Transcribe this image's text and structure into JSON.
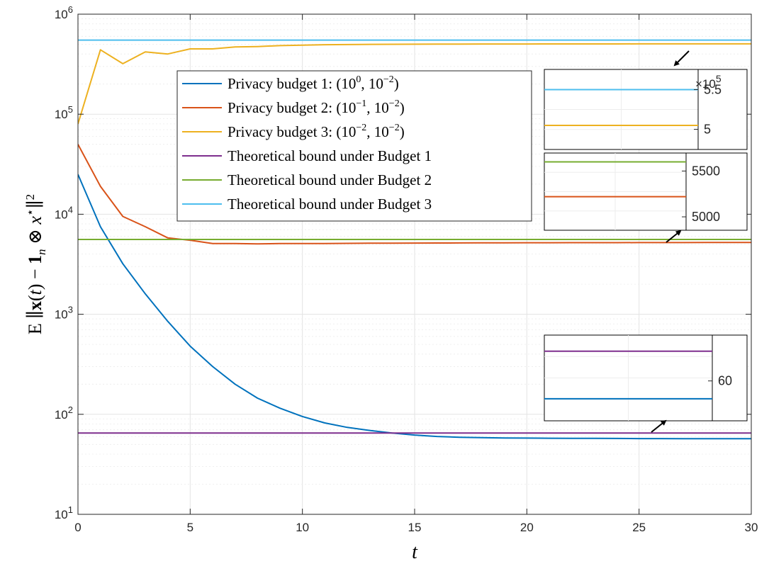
{
  "chart_data": {
    "type": "line",
    "xlabel": "t",
    "ylabel": "E ||x(t) − 1n ⊗ x*||²",
    "yscale": "log",
    "xlim": [
      0,
      30
    ],
    "ylim": [
      10,
      1000000
    ],
    "xticks": [
      0,
      5,
      10,
      15,
      20,
      25,
      30
    ],
    "x_tick_labels": [
      "0",
      "5",
      "10",
      "15",
      "20",
      "25",
      "30"
    ],
    "y_tick_labels": [
      {
        "base": "10",
        "exp": "1"
      },
      {
        "base": "10",
        "exp": "2"
      },
      {
        "base": "10",
        "exp": "3"
      },
      {
        "base": "10",
        "exp": "4"
      },
      {
        "base": "10",
        "exp": "5"
      },
      {
        "base": "10",
        "exp": "6"
      }
    ],
    "grid": true,
    "legend_position": "upper-left-center",
    "x": [
      0,
      1,
      2,
      3,
      4,
      5,
      6,
      7,
      8,
      9,
      10,
      11,
      12,
      13,
      14,
      15,
      16,
      17,
      18,
      19,
      20,
      21,
      22,
      23,
      24,
      25,
      26,
      27,
      28,
      29,
      30
    ],
    "series": [
      {
        "name": "Privacy budget 1",
        "label_prefix": "Privacy budget 1: ",
        "params": [
          {
            "base": "10",
            "exp": "0"
          },
          {
            "base": "10",
            "exp": "−2"
          }
        ],
        "color": "#0072BD",
        "values": [
          25000,
          7500,
          3200,
          1600,
          850,
          480,
          300,
          200,
          145,
          115,
          95,
          82,
          74,
          69,
          65,
          62,
          60,
          59,
          58.5,
          58,
          57.8,
          57.6,
          57.5,
          57.4,
          57.3,
          57.2,
          57.2,
          57.1,
          57.1,
          57,
          57
        ]
      },
      {
        "name": "Privacy budget 2",
        "label_prefix": "Privacy budget 2: ",
        "params": [
          {
            "base": "10",
            "exp": "−1"
          },
          {
            "base": "10",
            "exp": "−2"
          }
        ],
        "color": "#D95319",
        "values": [
          50000,
          19000,
          9500,
          7500,
          5800,
          5500,
          5100,
          5100,
          5050,
          5100,
          5100,
          5100,
          5120,
          5130,
          5140,
          5150,
          5160,
          5170,
          5180,
          5180,
          5190,
          5190,
          5200,
          5200,
          5200,
          5210,
          5210,
          5210,
          5220,
          5220,
          5220
        ]
      },
      {
        "name": "Privacy budget 3",
        "label_prefix": "Privacy budget 3: ",
        "params": [
          {
            "base": "10",
            "exp": "−2"
          },
          {
            "base": "10",
            "exp": "−2"
          }
        ],
        "color": "#EDB120",
        "values": [
          80000,
          440000,
          320000,
          420000,
          400000,
          450000,
          450000,
          470000,
          475000,
          485000,
          490000,
          495000,
          497000,
          499000,
          500000,
          501000,
          502000,
          502000,
          503000,
          503000,
          503000,
          504000,
          504000,
          504000,
          504000,
          505000,
          505000,
          505000,
          505000,
          505000,
          505000
        ]
      },
      {
        "name": "Theoretical bound under Budget 1",
        "label": "Theoretical bound under Budget 1",
        "color": "#7E2F8E",
        "constant": 65
      },
      {
        "name": "Theoretical bound under Budget 2",
        "label": "Theoretical bound under Budget 2",
        "color": "#77AC30",
        "constant": 5600
      },
      {
        "name": "Theoretical bound under Budget 3",
        "label": "Theoretical bound under Budget 3",
        "color": "#4DBEEE",
        "constant": 550000
      }
    ],
    "insets": [
      {
        "name": "inset-budget3",
        "ylim": [
          480000,
          570000
        ],
        "tick_labels": [
          "5.5",
          "5"
        ],
        "tick_values": [
          550000,
          500000
        ],
        "multiplier": {
          "base": "×10",
          "exp": "5"
        },
        "lines": [
          {
            "color": "#4DBEEE",
            "value": 550000
          },
          {
            "color": "#EDB120",
            "value": 505000
          }
        ]
      },
      {
        "name": "inset-budget2",
        "ylim": [
          4900,
          5650
        ],
        "tick_labels": [
          "5500",
          "5000"
        ],
        "tick_values": [
          5500,
          5000
        ],
        "lines": [
          {
            "color": "#77AC30",
            "value": 5600
          },
          {
            "color": "#D95319",
            "value": 5220
          }
        ]
      },
      {
        "name": "inset-budget1",
        "ylim": [
          54,
          67
        ],
        "tick_labels": [
          "60"
        ],
        "tick_values": [
          60
        ],
        "lines": [
          {
            "color": "#7E2F8E",
            "value": 65
          },
          {
            "color": "#0072BD",
            "value": 57
          }
        ]
      }
    ]
  }
}
